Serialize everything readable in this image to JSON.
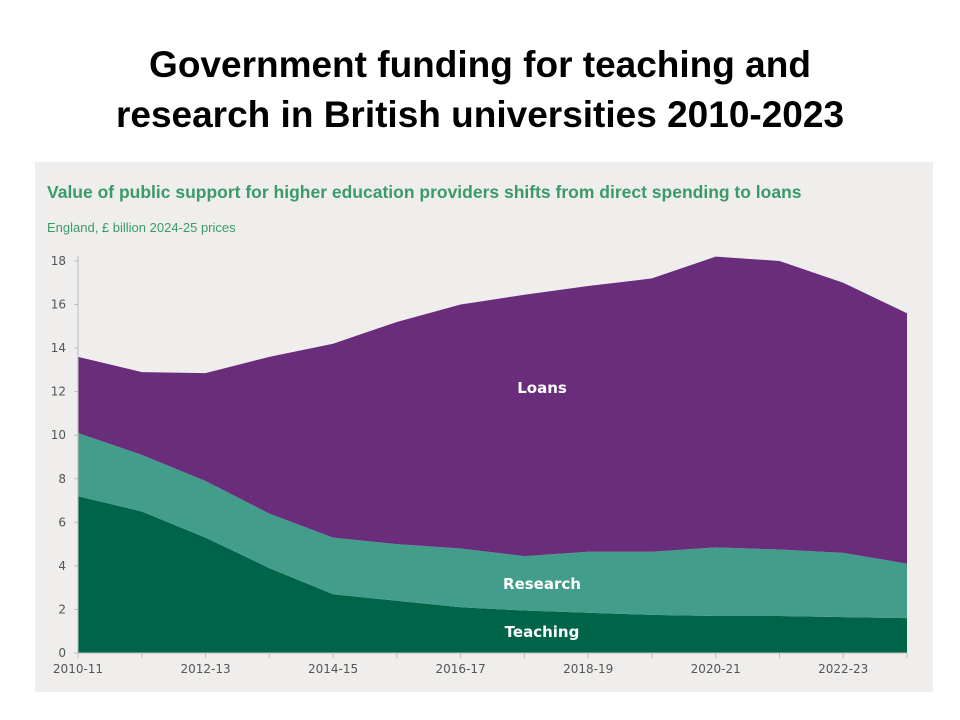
{
  "slide": {
    "title_line1": "Government funding for teaching and",
    "title_line2": "research in British universities 2010-2023"
  },
  "chart_data": {
    "type": "area",
    "stacked": true,
    "title": "Value of public support for higher education providers shifts from direct spending to loans",
    "subtitle": "England, £ billion 2024-25 prices",
    "categories": [
      "2010-11",
      "2011-12",
      "2012-13",
      "2013-14",
      "2014-15",
      "2015-16",
      "2016-17",
      "2017-18",
      "2018-19",
      "2019-20",
      "2020-21",
      "2021-22",
      "2022-23",
      "2023-24"
    ],
    "x_tick_labels": [
      "2010-11",
      "2012-13",
      "2014-15",
      "2016-17",
      "2018-19",
      "2020-21",
      "2022-23"
    ],
    "ylim": [
      0,
      18
    ],
    "y_ticks": [
      0,
      2,
      4,
      6,
      8,
      10,
      12,
      14,
      16,
      18
    ],
    "grid": false,
    "series": [
      {
        "name": "Teaching",
        "color": "#006548",
        "values": [
          7.2,
          6.5,
          5.3,
          3.9,
          2.7,
          2.4,
          2.1,
          1.95,
          1.85,
          1.75,
          1.7,
          1.7,
          1.65,
          1.6
        ]
      },
      {
        "name": "Research",
        "color": "#429e8a",
        "values": [
          2.9,
          2.6,
          2.6,
          2.5,
          2.6,
          2.6,
          2.7,
          2.5,
          2.8,
          2.9,
          3.15,
          3.05,
          2.95,
          2.5
        ]
      },
      {
        "name": "Loans",
        "color": "#692d7c",
        "values": [
          3.5,
          3.8,
          4.95,
          7.2,
          8.9,
          10.2,
          11.2,
          12.0,
          12.2,
          12.55,
          13.35,
          13.25,
          12.4,
          11.5
        ]
      }
    ]
  }
}
